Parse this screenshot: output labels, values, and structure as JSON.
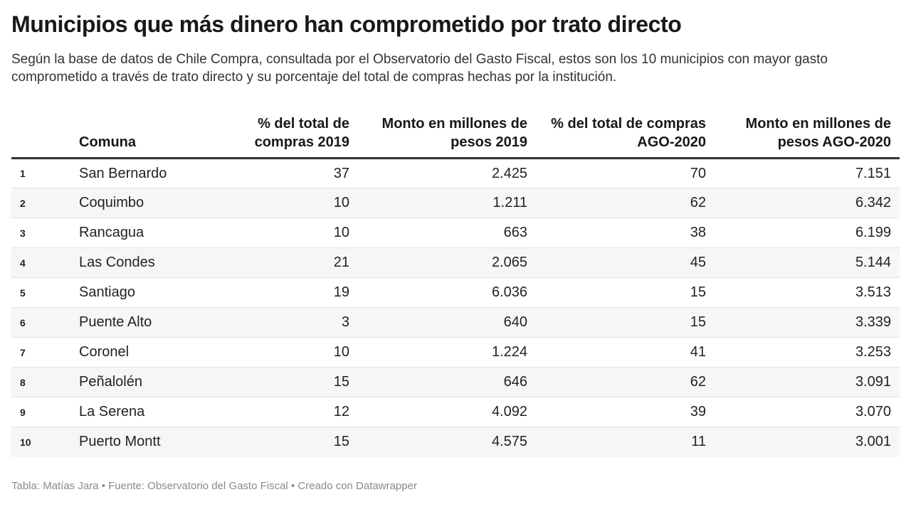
{
  "title": "Municipios que más dinero han comprometido por trato directo",
  "description": "Según la base de datos de Chile Compra, consultada por el Observatorio del Gasto Fiscal, estos son los 10 municipios con mayor gasto comprometido a través de trato directo y su porcentaje del total de compras hechas por la institución.",
  "footer": "Tabla: Matías Jara • Fuente: Observatorio del Gasto Fiscal • Creado con Datawrapper",
  "chart_data": {
    "type": "table",
    "columns": [
      "",
      "Comuna",
      "% del total de compras 2019",
      "Monto en millones de pesos 2019",
      "% del total de compras AGO-2020",
      "Monto en millones de pesos AGO-2020"
    ],
    "rows": [
      [
        "1",
        "San Bernardo",
        "37",
        "2.425",
        "70",
        "7.151"
      ],
      [
        "2",
        "Coquimbo",
        "10",
        "1.211",
        "62",
        "6.342"
      ],
      [
        "3",
        "Rancagua",
        "10",
        "663",
        "38",
        "6.199"
      ],
      [
        "4",
        "Las Condes",
        "21",
        "2.065",
        "45",
        "5.144"
      ],
      [
        "5",
        "Santiago",
        "19",
        "6.036",
        "15",
        "3.513"
      ],
      [
        "6",
        "Puente Alto",
        "3",
        "640",
        "15",
        "3.339"
      ],
      [
        "7",
        "Coronel",
        "10",
        "1.224",
        "41",
        "3.253"
      ],
      [
        "8",
        "Peñalolén",
        "15",
        "646",
        "62",
        "3.091"
      ],
      [
        "9",
        "La Serena",
        "12",
        "4.092",
        "39",
        "3.070"
      ],
      [
        "10",
        "Puerto Montt",
        "15",
        "4.575",
        "11",
        "3.001"
      ]
    ]
  }
}
